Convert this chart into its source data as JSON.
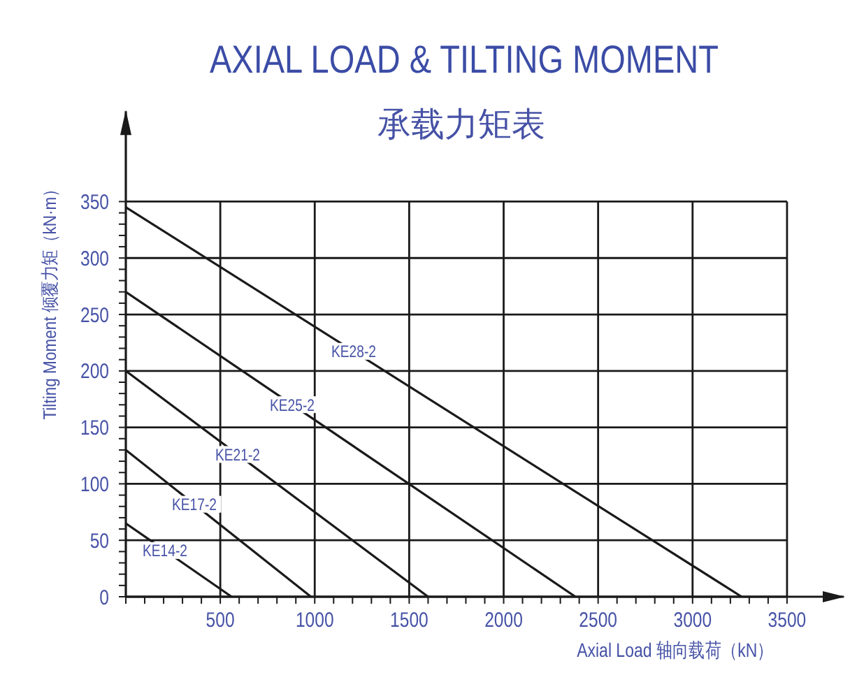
{
  "chart_data": {
    "type": "line",
    "title": "AXIAL LOAD & TILTING MOMENT",
    "subtitle": "承载力矩表",
    "xlabel": "Axial Load 轴向载荷（kN）",
    "ylabel": "Tilting Moment 倾覆力矩（kN·m）",
    "xlim": [
      0,
      3800
    ],
    "ylim": [
      0,
      430
    ],
    "xticks": [
      {
        "value": 0,
        "label": null
      },
      {
        "value": 100,
        "label": null
      },
      {
        "value": 200,
        "label": null
      },
      {
        "value": 300,
        "label": null
      },
      {
        "value": 400,
        "label": null
      },
      500,
      {
        "value": 600,
        "label": null
      },
      {
        "value": 700,
        "label": null
      },
      {
        "value": 800,
        "label": null
      },
      {
        "value": 900,
        "label": null
      },
      1000,
      {
        "value": 1100,
        "label": null
      },
      {
        "value": 1200,
        "label": null
      },
      {
        "value": 1300,
        "label": null
      },
      {
        "value": 1400,
        "label": null
      },
      1500,
      {
        "value": 1600,
        "label": null
      },
      {
        "value": 1700,
        "label": null
      },
      {
        "value": 1800,
        "label": null
      },
      {
        "value": 1900,
        "label": null
      },
      2000,
      {
        "value": 2100,
        "label": null
      },
      {
        "value": 2200,
        "label": null
      },
      {
        "value": 2300,
        "label": null
      },
      {
        "value": 2400,
        "label": null
      },
      2500,
      {
        "value": 2600,
        "label": null
      },
      {
        "value": 2700,
        "label": null
      },
      {
        "value": 2800,
        "label": null
      },
      {
        "value": 2900,
        "label": null
      },
      3000,
      {
        "value": 3100,
        "label": null
      },
      {
        "value": 3200,
        "label": null
      },
      {
        "value": 3300,
        "label": null
      },
      {
        "value": 3400,
        "label": null
      },
      3500
    ],
    "yticks": [
      0,
      {
        "value": 10,
        "label": null
      },
      {
        "value": 20,
        "label": null
      },
      {
        "value": 30,
        "label": null
      },
      {
        "value": 40,
        "label": null
      },
      50,
      {
        "value": 60,
        "label": null
      },
      {
        "value": 70,
        "label": null
      },
      {
        "value": 80,
        "label": null
      },
      {
        "value": 90,
        "label": null
      },
      100,
      {
        "value": 110,
        "label": null
      },
      {
        "value": 120,
        "label": null
      },
      {
        "value": 130,
        "label": null
      },
      {
        "value": 140,
        "label": null
      },
      150,
      {
        "value": 160,
        "label": null
      },
      {
        "value": 170,
        "label": null
      },
      {
        "value": 180,
        "label": null
      },
      {
        "value": 190,
        "label": null
      },
      200,
      {
        "value": 210,
        "label": null
      },
      {
        "value": 220,
        "label": null
      },
      {
        "value": 230,
        "label": null
      },
      {
        "value": 240,
        "label": null
      },
      250,
      {
        "value": 260,
        "label": null
      },
      {
        "value": 270,
        "label": null
      },
      {
        "value": 280,
        "label": null
      },
      {
        "value": 290,
        "label": null
      },
      300,
      {
        "value": 310,
        "label": null
      },
      {
        "value": 320,
        "label": null
      },
      {
        "value": 330,
        "label": null
      },
      {
        "value": 340,
        "label": null
      },
      350
    ],
    "grid": true,
    "marker": "none",
    "line_style": "solid",
    "series": [
      {
        "name": "KE14-2",
        "color": "#1a1a1a",
        "x": [
          0,
          560
        ],
        "values": [
          65,
          0
        ]
      },
      {
        "name": "KE17-2",
        "color": "#1a1a1a",
        "x": [
          0,
          980
        ],
        "values": [
          130,
          0
        ]
      },
      {
        "name": "KE21-2",
        "color": "#1a1a1a",
        "x": [
          0,
          1600
        ],
        "values": [
          200,
          0
        ]
      },
      {
        "name": "KE25-2",
        "color": "#1a1a1a",
        "x": [
          0,
          2380
        ],
        "values": [
          270,
          0
        ]
      },
      {
        "name": "KE28-2",
        "color": "#1a1a1a",
        "x": [
          0,
          3260
        ],
        "values": [
          345,
          0
        ]
      }
    ]
  }
}
